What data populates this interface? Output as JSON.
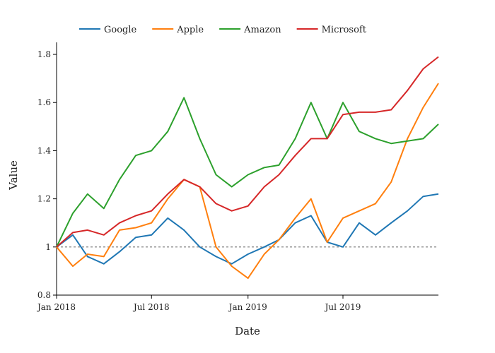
{
  "chart_data": {
    "type": "line",
    "xlabel": "Date",
    "ylabel": "Value",
    "xlim": [
      "2018-01-01",
      "2019-12-30"
    ],
    "ylim": [
      0.8,
      1.85
    ],
    "x_ticks": [
      "2018-01-01",
      "2018-07-01",
      "2019-01-01",
      "2019-07-01"
    ],
    "x_tick_labels": [
      "Jan 2018",
      "Jul 2018",
      "Jan 2019",
      "Jul 2019"
    ],
    "y_ticks": [
      0.8,
      1,
      1.2,
      1.4,
      1.6,
      1.8
    ],
    "y_tick_labels": [
      "0.8",
      "1",
      "1.2",
      "1.4",
      "1.6",
      "1.8"
    ],
    "reference_line": 1,
    "legend_position": "top-left",
    "grid": false,
    "x": [
      "2018-01-01",
      "2018-02-01",
      "2018-03-01",
      "2018-04-01",
      "2018-05-01",
      "2018-06-01",
      "2018-07-01",
      "2018-08-01",
      "2018-09-01",
      "2018-10-01",
      "2018-11-01",
      "2018-12-01",
      "2019-01-01",
      "2019-02-01",
      "2019-03-01",
      "2019-04-01",
      "2019-05-01",
      "2019-06-01",
      "2019-07-01",
      "2019-08-01",
      "2019-09-01",
      "2019-10-01",
      "2019-11-01",
      "2019-12-01",
      "2019-12-30"
    ],
    "series": [
      {
        "name": "Google",
        "color": "#1f77b4",
        "values": [
          1.0,
          1.05,
          0.96,
          0.93,
          0.98,
          1.04,
          1.05,
          1.12,
          1.07,
          1.0,
          0.96,
          0.93,
          0.97,
          1.0,
          1.03,
          1.1,
          1.13,
          1.02,
          1.0,
          1.1,
          1.05,
          1.1,
          1.15,
          1.21,
          1.22
        ]
      },
      {
        "name": "Apple",
        "color": "#ff7f0e",
        "values": [
          1.0,
          0.92,
          0.97,
          0.96,
          1.07,
          1.08,
          1.1,
          1.2,
          1.28,
          1.25,
          1.0,
          0.92,
          0.87,
          0.97,
          1.03,
          1.12,
          1.2,
          1.02,
          1.12,
          1.15,
          1.18,
          1.27,
          1.45,
          1.58,
          1.68
        ]
      },
      {
        "name": "Amazon",
        "color": "#2ca02c",
        "values": [
          1.0,
          1.14,
          1.22,
          1.16,
          1.28,
          1.38,
          1.4,
          1.48,
          1.62,
          1.45,
          1.3,
          1.25,
          1.3,
          1.33,
          1.34,
          1.45,
          1.6,
          1.45,
          1.6,
          1.48,
          1.45,
          1.43,
          1.44,
          1.45,
          1.51
        ]
      },
      {
        "name": "Microsoft",
        "color": "#d62728",
        "values": [
          1.0,
          1.06,
          1.07,
          1.05,
          1.1,
          1.13,
          1.15,
          1.22,
          1.28,
          1.25,
          1.18,
          1.15,
          1.17,
          1.25,
          1.3,
          1.38,
          1.45,
          1.45,
          1.55,
          1.56,
          1.56,
          1.57,
          1.65,
          1.74,
          1.79
        ]
      }
    ]
  }
}
